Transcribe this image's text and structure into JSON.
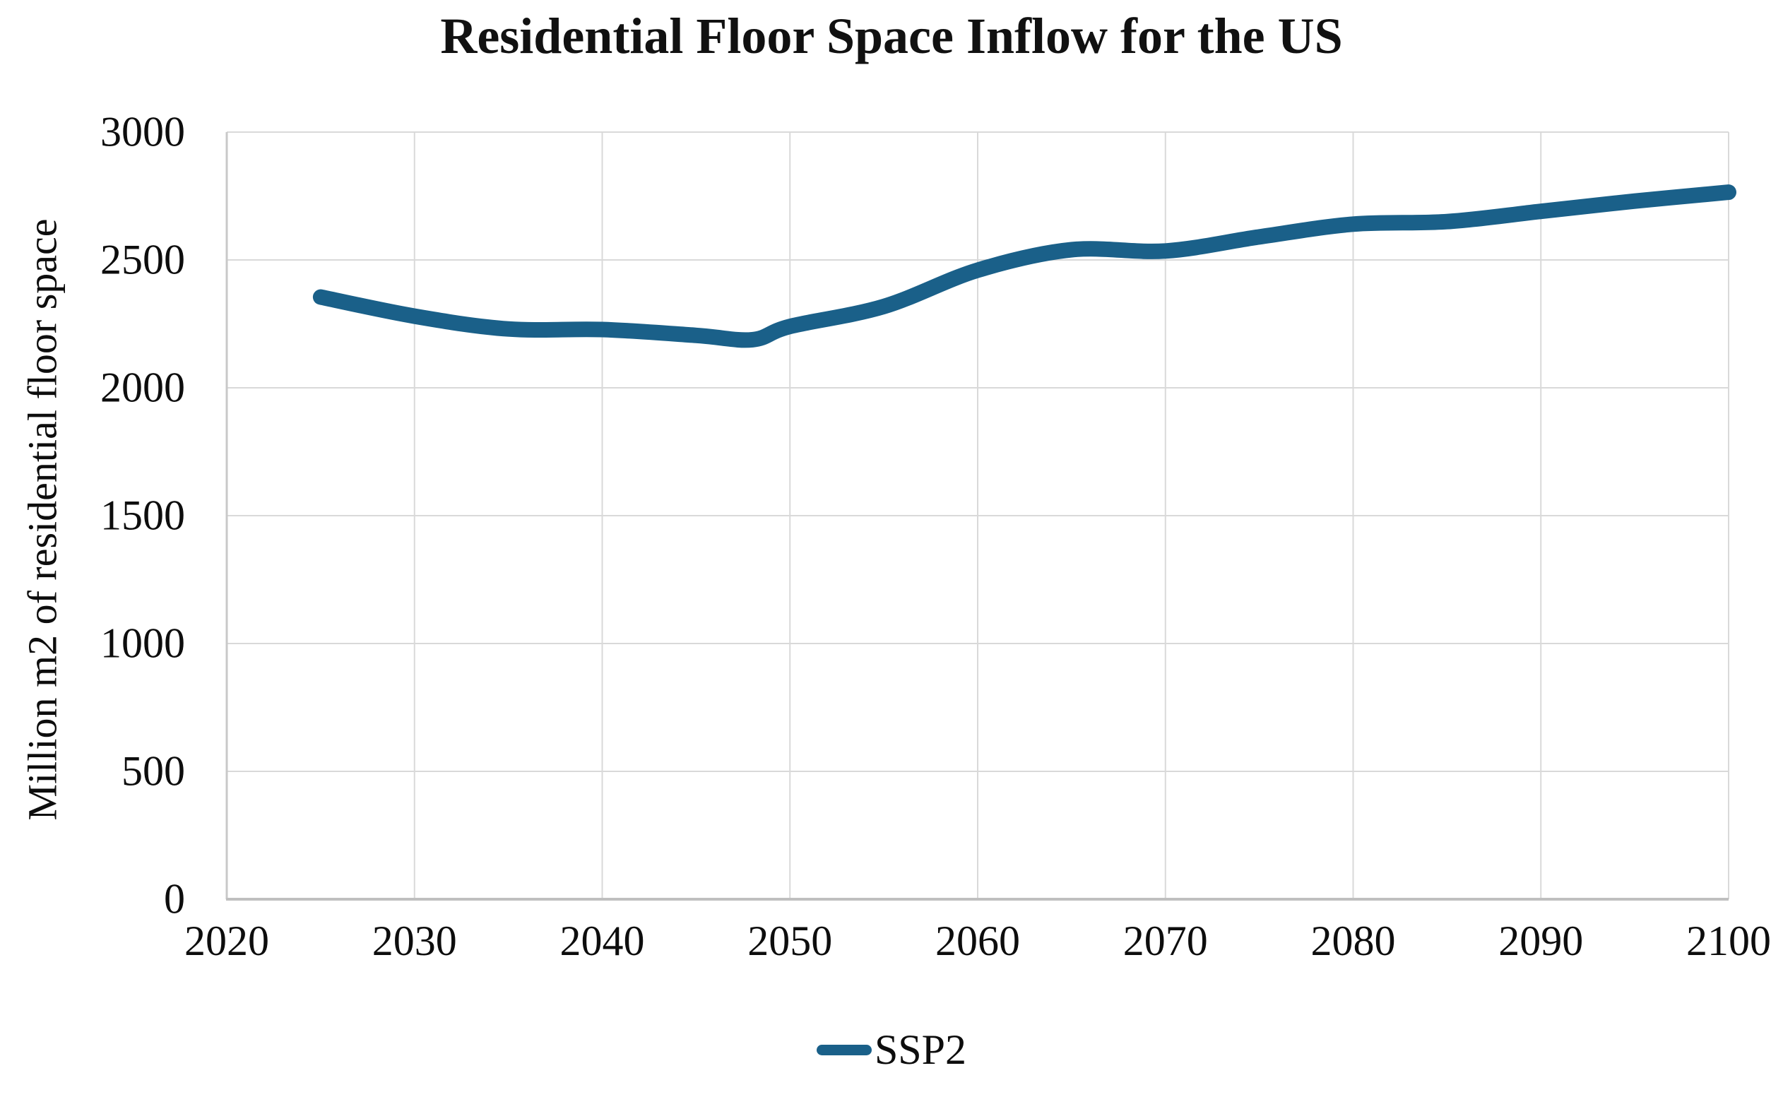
{
  "chart": {
    "title": "Residential Floor Space Inflow for the US",
    "y_axis": {
      "title": "Million m2 of residential floor space",
      "ticks": [
        "3000",
        "2500",
        "2000",
        "1500",
        "1000",
        "500",
        "0"
      ]
    },
    "x_axis": {
      "ticks": [
        "2020",
        "2030",
        "2040",
        "2050",
        "2060",
        "2070",
        "2080",
        "2090",
        "2100"
      ]
    },
    "legend": {
      "label": "SSP2"
    },
    "colors": {
      "series_line": "#1A6089",
      "gridline": "#D9D9D9",
      "axis_line_bottom": "#BFBFBF",
      "axis_line_left": "#C9C9C9",
      "text": "#0D0D0D"
    }
  },
  "chart_data": {
    "type": "line",
    "title": "Residential Floor Space Inflow for the US",
    "xlabel": "",
    "ylabel": "Million m2 of residential floor space",
    "xlim": [
      2020,
      2100
    ],
    "ylim": [
      0,
      3000
    ],
    "x_tick_step": 10,
    "y_tick_step": 500,
    "grid": true,
    "legend_position": "bottom",
    "series": [
      {
        "name": "SSP2",
        "color": "#1A6089",
        "smooth": true,
        "points": [
          {
            "x": 2025,
            "y": 2355
          },
          {
            "x": 2030,
            "y": 2280
          },
          {
            "x": 2035,
            "y": 2230
          },
          {
            "x": 2040,
            "y": 2228
          },
          {
            "x": 2045,
            "y": 2205
          },
          {
            "x": 2048,
            "y": 2188
          },
          {
            "x": 2050,
            "y": 2240
          },
          {
            "x": 2055,
            "y": 2318
          },
          {
            "x": 2060,
            "y": 2460
          },
          {
            "x": 2065,
            "y": 2540
          },
          {
            "x": 2070,
            "y": 2535
          },
          {
            "x": 2075,
            "y": 2590
          },
          {
            "x": 2080,
            "y": 2640
          },
          {
            "x": 2085,
            "y": 2650
          },
          {
            "x": 2090,
            "y": 2690
          },
          {
            "x": 2095,
            "y": 2730
          },
          {
            "x": 2100,
            "y": 2765
          }
        ]
      }
    ]
  }
}
